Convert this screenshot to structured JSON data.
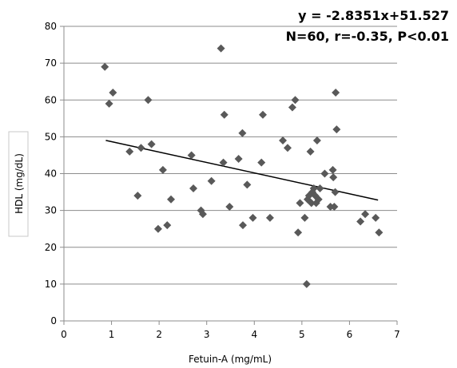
{
  "chart_data": {
    "type": "scatter",
    "xlabel": "Fetuin-A (mg/mL)",
    "ylabel": "HDL (mg/dL)",
    "xlim": [
      0,
      7
    ],
    "ylim": [
      0,
      80
    ],
    "x_ticks": [
      0,
      1,
      2,
      3,
      4,
      5,
      6,
      7
    ],
    "y_ticks": [
      0,
      10,
      20,
      30,
      40,
      50,
      60,
      70,
      80
    ],
    "grid": "horizontal",
    "annotations": [
      "y = -2.8351x+51.527",
      "N=60, r=-0.35, P<0.01"
    ],
    "marker_color": "#595959",
    "trendline": {
      "slope": -2.8351,
      "intercept": 51.527,
      "x_range": [
        0.88,
        6.6
      ]
    },
    "points": [
      {
        "x": 0.86,
        "y": 69
      },
      {
        "x": 0.95,
        "y": 59
      },
      {
        "x": 1.03,
        "y": 62
      },
      {
        "x": 1.38,
        "y": 46
      },
      {
        "x": 1.55,
        "y": 34
      },
      {
        "x": 1.62,
        "y": 47
      },
      {
        "x": 1.77,
        "y": 60
      },
      {
        "x": 1.84,
        "y": 48
      },
      {
        "x": 1.98,
        "y": 25
      },
      {
        "x": 2.08,
        "y": 41
      },
      {
        "x": 2.17,
        "y": 26
      },
      {
        "x": 2.25,
        "y": 33
      },
      {
        "x": 2.68,
        "y": 45
      },
      {
        "x": 2.72,
        "y": 36
      },
      {
        "x": 2.88,
        "y": 30
      },
      {
        "x": 2.92,
        "y": 29
      },
      {
        "x": 3.1,
        "y": 38
      },
      {
        "x": 3.3,
        "y": 74
      },
      {
        "x": 3.35,
        "y": 43
      },
      {
        "x": 3.37,
        "y": 56
      },
      {
        "x": 3.48,
        "y": 31
      },
      {
        "x": 3.67,
        "y": 44
      },
      {
        "x": 3.75,
        "y": 51
      },
      {
        "x": 3.76,
        "y": 26
      },
      {
        "x": 3.85,
        "y": 37
      },
      {
        "x": 3.97,
        "y": 28
      },
      {
        "x": 4.15,
        "y": 43
      },
      {
        "x": 4.18,
        "y": 56
      },
      {
        "x": 4.33,
        "y": 28
      },
      {
        "x": 4.6,
        "y": 49
      },
      {
        "x": 4.7,
        "y": 47
      },
      {
        "x": 4.8,
        "y": 58
      },
      {
        "x": 4.86,
        "y": 60
      },
      {
        "x": 4.92,
        "y": 24
      },
      {
        "x": 4.96,
        "y": 32
      },
      {
        "x": 5.06,
        "y": 28
      },
      {
        "x": 5.1,
        "y": 10
      },
      {
        "x": 5.12,
        "y": 33
      },
      {
        "x": 5.18,
        "y": 46
      },
      {
        "x": 5.2,
        "y": 32
      },
      {
        "x": 5.22,
        "y": 35
      },
      {
        "x": 5.25,
        "y": 36
      },
      {
        "x": 5.28,
        "y": 34
      },
      {
        "x": 5.3,
        "y": 32
      },
      {
        "x": 5.32,
        "y": 49
      },
      {
        "x": 5.35,
        "y": 33
      },
      {
        "x": 5.38,
        "y": 36
      },
      {
        "x": 5.48,
        "y": 40
      },
      {
        "x": 5.6,
        "y": 31
      },
      {
        "x": 5.65,
        "y": 41
      },
      {
        "x": 5.66,
        "y": 39
      },
      {
        "x": 5.68,
        "y": 31
      },
      {
        "x": 5.7,
        "y": 35
      },
      {
        "x": 5.71,
        "y": 62
      },
      {
        "x": 5.73,
        "y": 52
      },
      {
        "x": 6.23,
        "y": 27
      },
      {
        "x": 6.33,
        "y": 29
      },
      {
        "x": 6.55,
        "y": 28
      },
      {
        "x": 6.62,
        "y": 24
      },
      {
        "x": 5.15,
        "y": 34
      }
    ]
  }
}
